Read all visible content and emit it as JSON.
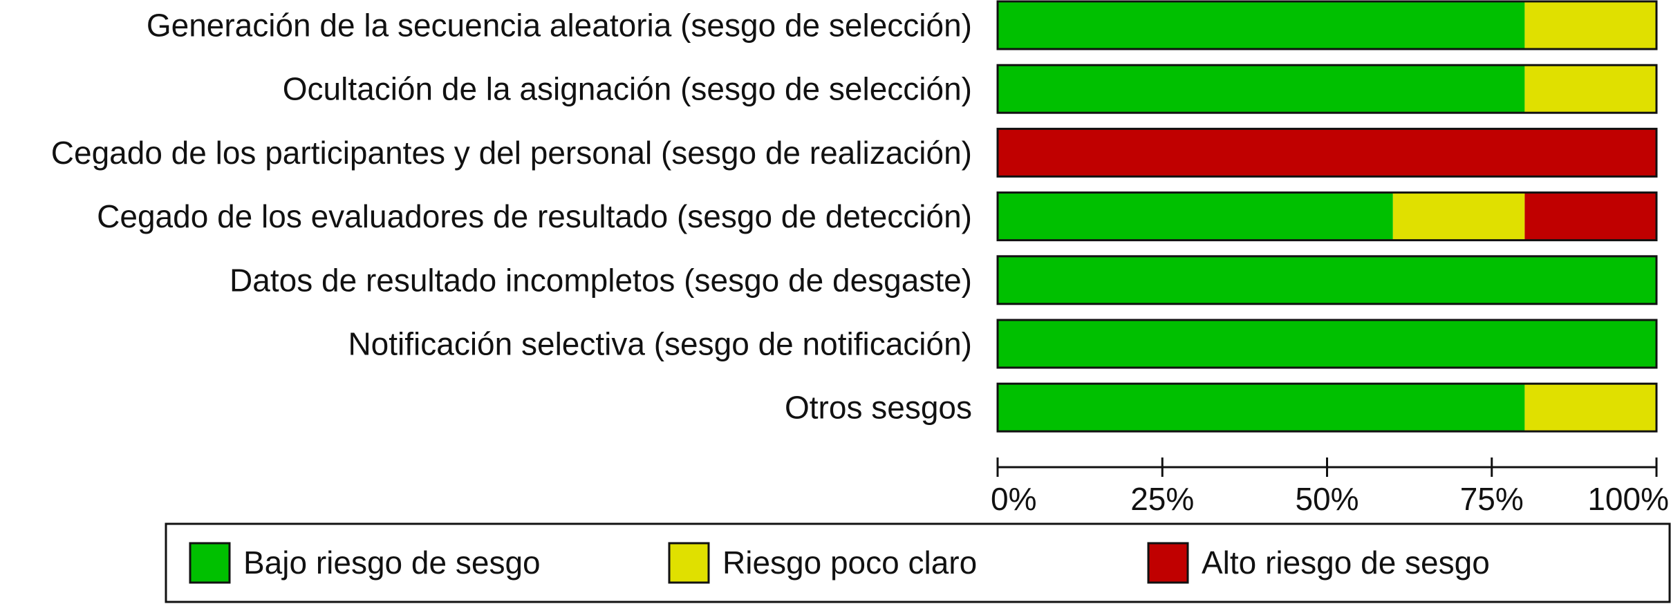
{
  "chart_data": {
    "type": "bar",
    "orientation": "horizontal",
    "stacked": true,
    "percent_axis": true,
    "categories": [
      "Generación de la secuencia aleatoria (sesgo de selección)",
      "Ocultación de la asignación (sesgo de selección)",
      "Cegado de los participantes y del personal (sesgo de realización)",
      "Cegado de los evaluadores de resultado (sesgo de detección)",
      "Datos de resultado incompletos (sesgo de desgaste)",
      "Notificación selectiva (sesgo de notificación)",
      "Otros sesgos"
    ],
    "series": [
      {
        "name": "Bajo riesgo de sesgo",
        "color": "#00c000",
        "values": [
          80,
          80,
          0,
          60,
          100,
          100,
          80
        ]
      },
      {
        "name": "Riesgo poco claro",
        "color": "#e0e000",
        "values": [
          20,
          20,
          0,
          20,
          0,
          0,
          20
        ]
      },
      {
        "name": "Alto riesgo de sesgo",
        "color": "#c00000",
        "values": [
          0,
          0,
          100,
          20,
          0,
          0,
          0
        ]
      }
    ],
    "xlim": [
      0,
      100
    ],
    "xticks": [
      0,
      25,
      50,
      75,
      100
    ],
    "xtick_labels": [
      "0%",
      "25%",
      "50%",
      "75%",
      "100%"
    ],
    "grid": false,
    "legend_position": "bottom",
    "title": "",
    "xlabel": "",
    "ylabel": ""
  }
}
